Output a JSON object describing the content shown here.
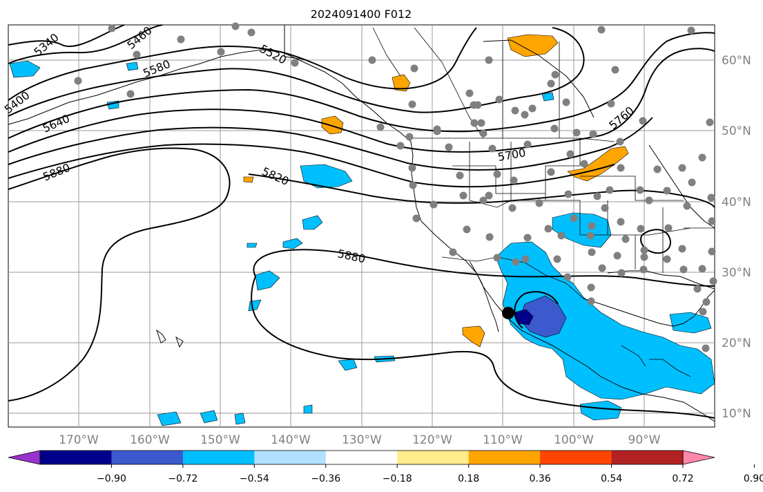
{
  "title": "2024091400 F012",
  "lat_labels": [
    "60°N",
    "50°N",
    "40°N",
    "30°N",
    "20°N",
    "10°N"
  ],
  "lon_labels": [
    "170°W",
    "160°W",
    "150°W",
    "140°W",
    "130°W",
    "120°W",
    "110°W",
    "100°W",
    "90°W"
  ],
  "contour_labels": [
    "5340",
    "5460",
    "5520",
    "5580",
    "5400",
    "5640",
    "5880",
    "5820",
    "5700",
    "5760",
    "5880"
  ],
  "colorbar": {
    "ticks": [
      "−0.90",
      "−0.72",
      "−0.54",
      "−0.36",
      "−0.18",
      "0.18",
      "0.36",
      "0.54",
      "0.72",
      "0.90"
    ],
    "colors": [
      "#9932cc",
      "#00008b",
      "#3c5acd",
      "#00bfff",
      "#b0e2ff",
      "#ffffff",
      "#ffec8b",
      "#ffa500",
      "#ff4500",
      "#b22222",
      "#ff88aa"
    ]
  },
  "colors": {
    "neg_strong": "#3c5acd",
    "neg_med": "#00bfff",
    "neg_light": "#b0e2ff",
    "pos_light": "#ffec8b",
    "pos_med": "#ffa500",
    "stations": "#808080"
  }
}
